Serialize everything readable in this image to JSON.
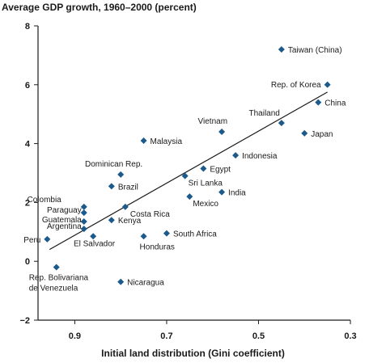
{
  "chart_data": {
    "type": "scatter",
    "title": "Average GDP growth, 1960–2000 (percent)",
    "xlabel": "Initial land distribution (Gini coefficient)",
    "ylabel": "",
    "xlim": [
      0.98,
      0.3
    ],
    "ylim": [
      -2,
      8
    ],
    "x_ticks": [
      "0.9",
      "0.7",
      "0.5",
      "0.3"
    ],
    "y_ticks": [
      "−2",
      "0",
      "2",
      "4",
      "6",
      "8"
    ],
    "marker_color": "#1c5a8c",
    "trend_line": [
      {
        "x": 0.955,
        "y": 0.4
      },
      {
        "x": 0.35,
        "y": 5.75
      }
    ],
    "points": [
      {
        "label": "Taiwan (China)",
        "x": 0.45,
        "y": 7.2
      },
      {
        "label": "Rep. of Korea",
        "x": 0.35,
        "y": 6.0
      },
      {
        "label": "China",
        "x": 0.37,
        "y": 5.4
      },
      {
        "label": "Thailand",
        "x": 0.45,
        "y": 4.7
      },
      {
        "label": "Japan",
        "x": 0.4,
        "y": 4.35
      },
      {
        "label": "Vietnam",
        "x": 0.58,
        "y": 4.4
      },
      {
        "label": "Malaysia",
        "x": 0.75,
        "y": 4.1
      },
      {
        "label": "Indonesia",
        "x": 0.55,
        "y": 3.6
      },
      {
        "label": "Egypt",
        "x": 0.62,
        "y": 3.15
      },
      {
        "label": "Sri Lanka",
        "x": 0.66,
        "y": 2.9
      },
      {
        "label": "India",
        "x": 0.58,
        "y": 2.35
      },
      {
        "label": "Mexico",
        "x": 0.65,
        "y": 2.2
      },
      {
        "label": "Dominican Rep.",
        "x": 0.8,
        "y": 2.95
      },
      {
        "label": "Brazil",
        "x": 0.82,
        "y": 2.55
      },
      {
        "label": "Colombia",
        "x": 0.88,
        "y": 1.85
      },
      {
        "label": "Paraguay",
        "x": 0.88,
        "y": 1.65
      },
      {
        "label": "Guatemala",
        "x": 0.88,
        "y": 1.35
      },
      {
        "label": "Argentina",
        "x": 0.88,
        "y": 1.1
      },
      {
        "label": "Costa Rica",
        "x": 0.79,
        "y": 1.85
      },
      {
        "label": "Kenya",
        "x": 0.82,
        "y": 1.4
      },
      {
        "label": "Peru",
        "x": 0.96,
        "y": 0.75
      },
      {
        "label": "El Salvador",
        "x": 0.86,
        "y": 0.85
      },
      {
        "label": "Honduras",
        "x": 0.75,
        "y": 0.85
      },
      {
        "label": "South Africa",
        "x": 0.7,
        "y": 0.95
      },
      {
        "label": "Rep. Bolivariana de Venezuela",
        "x": 0.94,
        "y": -0.2
      },
      {
        "label": "Nicaragua",
        "x": 0.8,
        "y": -0.7
      }
    ]
  }
}
